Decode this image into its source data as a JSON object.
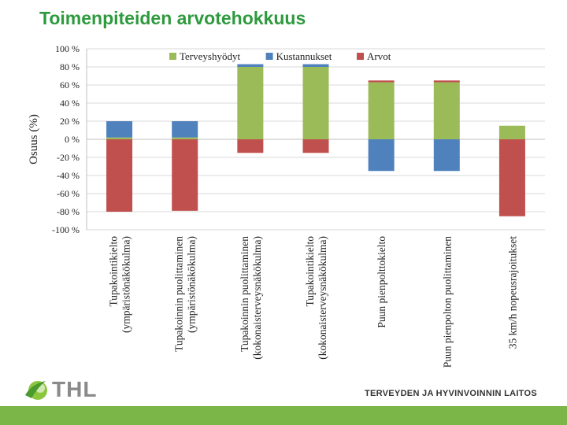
{
  "slide": {
    "title": "Toimenpiteiden arvotehokkuus",
    "logo_text": "THL",
    "footer_text": "TERVEYDEN JA HYVINVOINNIN LAITOS",
    "footer_color": "#7ab648",
    "title_color": "#2e9a3e"
  },
  "chart_data": {
    "type": "bar",
    "stacked": true,
    "ylabel": "Osuus (%)",
    "ylim": [
      -100,
      100
    ],
    "yticks": [
      100,
      80,
      60,
      40,
      20,
      0,
      -20,
      -40,
      -60,
      -80,
      -100
    ],
    "ytick_suffix": " %",
    "grid": true,
    "legend_position": "top",
    "categories": [
      [
        "Tupakointikielto",
        "(ympäristönäkökulma)"
      ],
      [
        "Tupakoinnin puolittaminen",
        "(ympäristönäkökulma)"
      ],
      [
        "Tupakoinnin puolittaminen",
        "(kokonaisterveysnäkökulma)"
      ],
      [
        "Tupakointikielto",
        "(kokonaisterveysnäkökulma)"
      ],
      [
        "Puun pienpolttokielto"
      ],
      [
        "Puun pienpolton puolittaminen"
      ],
      [
        "35 km/h nopeusrajoitukset"
      ]
    ],
    "series": [
      {
        "name": "Terveyshyödyt",
        "color": "#9bbb59",
        "values": [
          2,
          2,
          80,
          80,
          63,
          63,
          15
        ]
      },
      {
        "name": "Kustannukset",
        "color": "#4f81bd",
        "values": [
          18,
          18,
          3,
          3,
          -35,
          -35,
          0
        ]
      },
      {
        "name": "Arvot",
        "color": "#c0504d",
        "values": [
          -80,
          -79,
          -15,
          -15,
          2,
          2,
          -85
        ]
      }
    ]
  }
}
